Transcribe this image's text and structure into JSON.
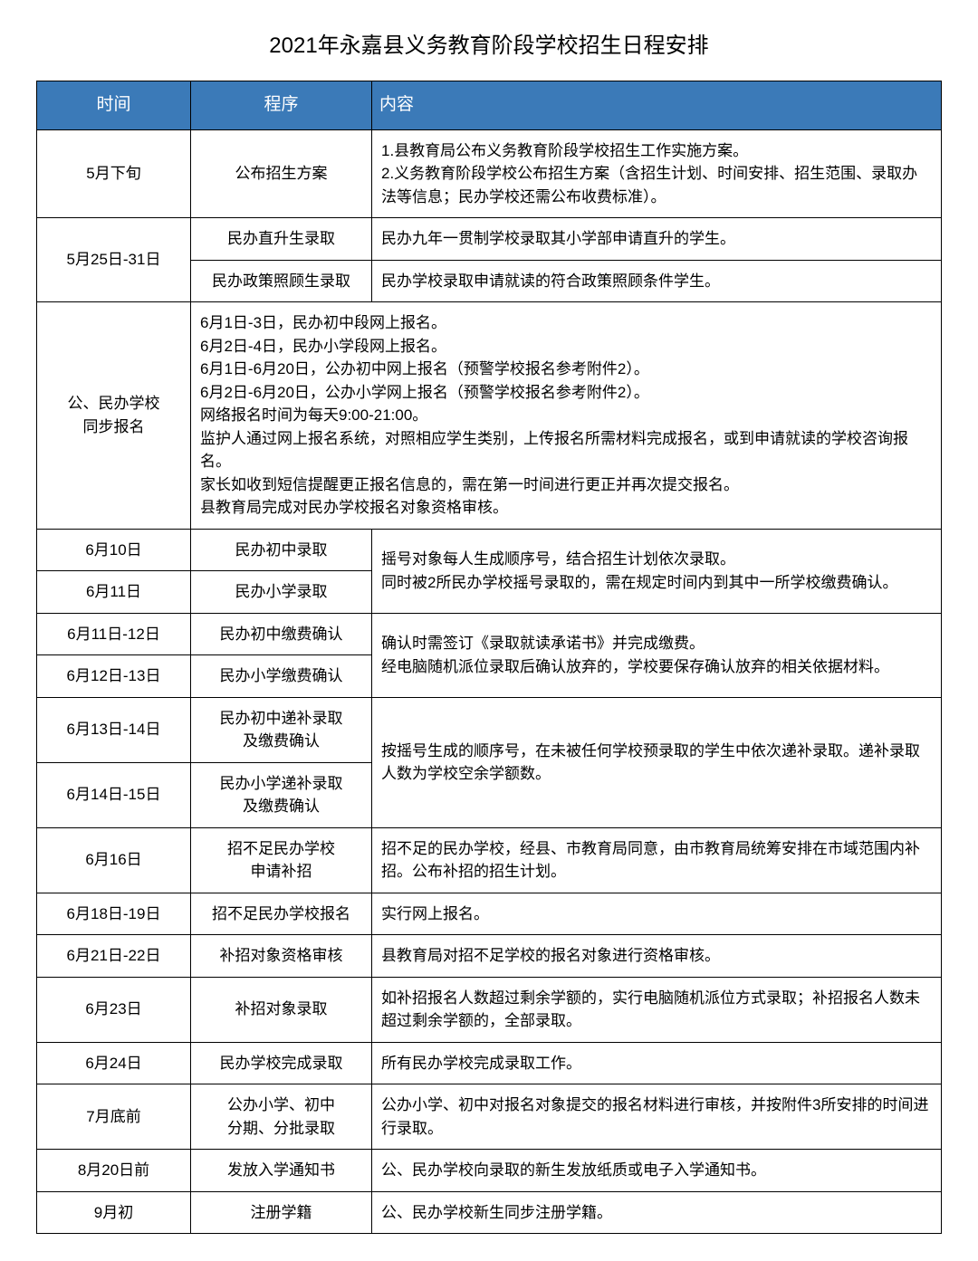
{
  "title": "2021年永嘉县义务教育阶段学校招生日程安排",
  "headers": {
    "time": "时间",
    "procedure": "程序",
    "content": "内容"
  },
  "rows": {
    "r1": {
      "time": "5月下旬",
      "proc": "公布招生方案",
      "content": "1.县教育局公布义务教育阶段学校招生工作实施方案。\n2.义务教育阶段学校公布招生方案（含招生计划、时间安排、招生范围、录取办法等信息；民办学校还需公布收费标准）。"
    },
    "r2": {
      "time": "5月25日-31日",
      "proc1": "民办直升生录取",
      "content1": "民办九年一贯制学校录取其小学部申请直升的学生。",
      "proc2": "民办政策照顾生录取",
      "content2": "民办学校录取申请就读的符合政策照顾条件学生。"
    },
    "r3": {
      "time": "公、民办学校\n同步报名",
      "content": "6月1日-3日，民办初中段网上报名。\n6月2日-4日，民办小学段网上报名。\n6月1日-6月20日，公办初中网上报名（预警学校报名参考附件2）。\n6月2日-6月20日，公办小学网上报名（预警学校报名参考附件2）。\n网络报名时间为每天9:00-21:00。\n监护人通过网上报名系统，对照相应学生类别，上传报名所需材料完成报名，或到申请就读的学校咨询报名。\n家长如收到短信提醒更正报名信息的，需在第一时间进行更正并再次提交报名。\n县教育局完成对民办学校报名对象资格审核。"
    },
    "r4": {
      "time1": "6月10日",
      "proc1": "民办初中录取",
      "time2": "6月11日",
      "proc2": "民办小学录取",
      "content": "摇号对象每人生成顺序号，结合招生计划依次录取。\n同时被2所民办学校摇号录取的，需在规定时间内到其中一所学校缴费确认。"
    },
    "r5": {
      "time1": "6月11日-12日",
      "proc1": "民办初中缴费确认",
      "time2": "6月12日-13日",
      "proc2": "民办小学缴费确认",
      "content": "确认时需签订《录取就读承诺书》并完成缴费。\n经电脑随机派位录取后确认放弃的，学校要保存确认放弃的相关依据材料。"
    },
    "r6": {
      "time1": "6月13日-14日",
      "proc1": "民办初中递补录取\n及缴费确认",
      "time2": "6月14日-15日",
      "proc2": "民办小学递补录取\n及缴费确认",
      "content": "按摇号生成的顺序号，在未被任何学校预录取的学生中依次递补录取。递补录取人数为学校空余学额数。"
    },
    "r7": {
      "time": "6月16日",
      "proc": "招不足民办学校\n申请补招",
      "content": "招不足的民办学校，经县、市教育局同意，由市教育局统筹安排在市域范围内补招。公布补招的招生计划。"
    },
    "r8": {
      "time": "6月18日-19日",
      "proc": "招不足民办学校报名",
      "content": "实行网上报名。"
    },
    "r9": {
      "time": "6月21日-22日",
      "proc": "补招对象资格审核",
      "content": "县教育局对招不足学校的报名对象进行资格审核。"
    },
    "r10": {
      "time": "6月23日",
      "proc": "补招对象录取",
      "content": "如补招报名人数超过剩余学额的，实行电脑随机派位方式录取；补招报名人数未超过剩余学额的，全部录取。"
    },
    "r11": {
      "time": "6月24日",
      "proc": "民办学校完成录取",
      "content": "所有民办学校完成录取工作。"
    },
    "r12": {
      "time": "7月底前",
      "proc": "公办小学、初中\n分期、分批录取",
      "content": "公办小学、初中对报名对象提交的报名材料进行审核，并按附件3所安排的时间进行录取。"
    },
    "r13": {
      "time": "8月20日前",
      "proc": "发放入学通知书",
      "content": "公、民办学校向录取的新生发放纸质或电子入学通知书。"
    },
    "r14": {
      "time": "9月初",
      "proc": "注册学籍",
      "content": "公、民办学校新生同步注册学籍。"
    }
  },
  "styling": {
    "header_bg": "#3b7ab8",
    "header_text": "#ffffff",
    "border_color": "#000000",
    "body_text": "#000000",
    "font_size_title": 24,
    "font_size_header": 19,
    "font_size_cell": 17,
    "col_time_width": 170,
    "col_proc_width": 200
  }
}
